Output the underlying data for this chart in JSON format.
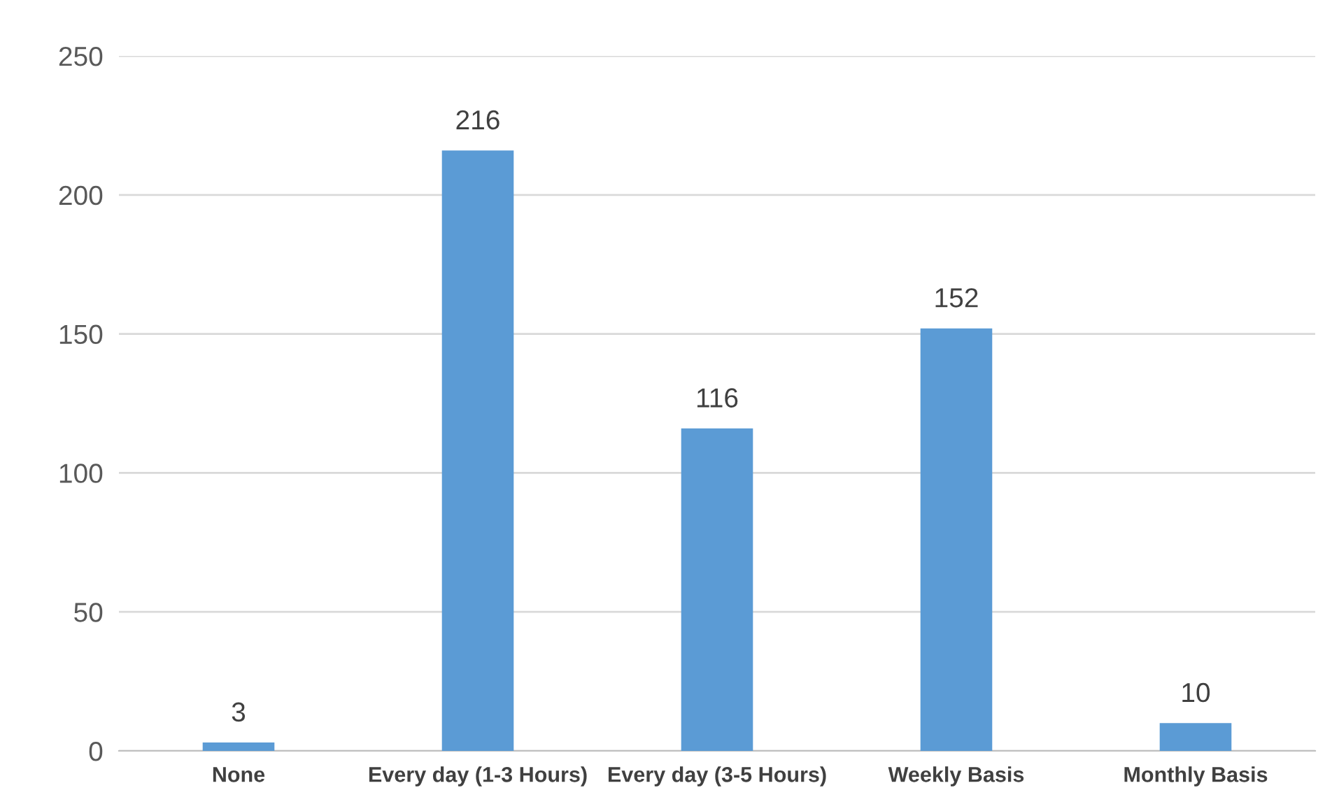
{
  "chart_data": {
    "type": "bar",
    "categories": [
      "None",
      "Every day (1-3 Hours)",
      "Every day (3-5 Hours)",
      "Weekly Basis",
      "Monthly Basis"
    ],
    "values": [
      3,
      216,
      116,
      152,
      10
    ],
    "color": "#5b9bd5",
    "ylim": [
      0,
      250
    ],
    "yticks": [
      0,
      50,
      100,
      150,
      200,
      250
    ],
    "grid": "y",
    "data_labels": true
  }
}
